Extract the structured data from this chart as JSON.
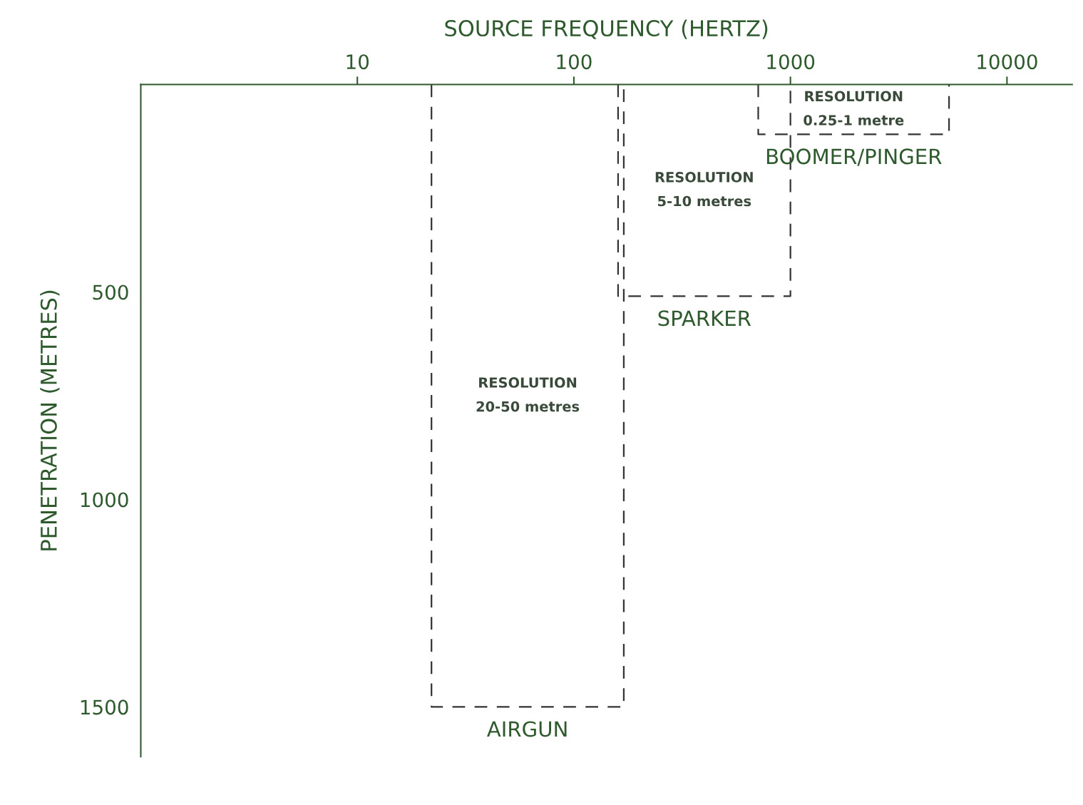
{
  "chart_data": {
    "type": "line",
    "xlabel": "SOURCE FREQUENCY (HERTZ)",
    "ylabel": "PENETRATION (METRES)",
    "log": "x",
    "xlim": [
      1,
      20000
    ],
    "xticks": [
      10,
      100,
      1000,
      10000
    ],
    "ylim": [
      1620,
      0
    ],
    "yticks": [
      500,
      1000,
      1500
    ],
    "line_style": "dashed",
    "marker": "none",
    "grid": false,
    "series": [
      {
        "name": "AIRGUN",
        "color": "#333333",
        "x": [
          22,
          22,
          170,
          170
        ],
        "values": [
          0,
          1500,
          1500,
          0
        ]
      },
      {
        "name": "SPARKER",
        "color": "#333333",
        "x": [
          160,
          160,
          1000,
          1000
        ],
        "values": [
          0,
          510,
          510,
          0
        ]
      },
      {
        "name": "BOOMER/PINGER",
        "color": "#333333",
        "x": [
          710,
          710,
          5400,
          5400
        ],
        "values": [
          0,
          120,
          120,
          0
        ]
      }
    ],
    "annotations": [
      "RESOLUTION\n20-50 metres",
      "RESOLUTION\n5-10 metres",
      "RESOLUTION\n0.25-1 metre"
    ]
  }
}
